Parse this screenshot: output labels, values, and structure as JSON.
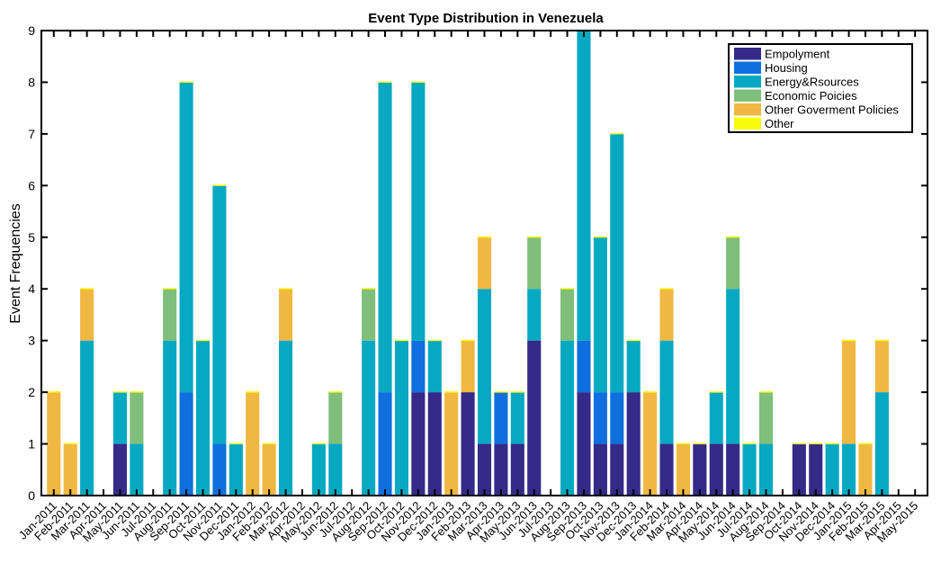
{
  "chart_data": {
    "type": "bar",
    "stacked": true,
    "title": "Event Type Distribution in Venezuela",
    "xlabel": "",
    "ylabel": "Event Frequencies",
    "ylim": [
      0,
      9
    ],
    "yticks": [
      0,
      1,
      2,
      3,
      4,
      5,
      6,
      7,
      8,
      9
    ],
    "grid": false,
    "legend_position": "top-right",
    "categories": [
      "Jan-2011",
      "Feb-2011",
      "Mar-2011",
      "Apr-2011",
      "May-2011",
      "Jun-2011",
      "Jul-2011",
      "Aug-2011",
      "Sep-2011",
      "Oct-2011",
      "Nov-2011",
      "Dec-2011",
      "Jan-2012",
      "Feb-2012",
      "Mar-2012",
      "Apr-2012",
      "May-2012",
      "Jun-2012",
      "Jul-2012",
      "Aug-2012",
      "Sep-2012",
      "Oct-2012",
      "Nov-2012",
      "Dec-2012",
      "Jan-2013",
      "Feb-2013",
      "Mar-2013",
      "Apr-2013",
      "May-2013",
      "Jun-2013",
      "Jul-2013",
      "Aug-2013",
      "Sep-2013",
      "Oct-2013",
      "Nov-2013",
      "Dec-2013",
      "Jan-2014",
      "Feb-2014",
      "Mar-2014",
      "Apr-2014",
      "May-2014",
      "Jun-2014",
      "Jul-2014",
      "Aug-2014",
      "Sep-2014",
      "Oct-2014",
      "Nov-2014",
      "Dec-2014",
      "Jan-2015",
      "Feb-2015",
      "Mar-2015",
      "Apr-2015",
      "May-2015"
    ],
    "xtick_labels": [
      "Jan-2011",
      "Feb-2011",
      "Mar-2011",
      "Apr-2011",
      "May-2011",
      "Jun-2011",
      "Jul-2011",
      "Aug-2011",
      "Sep-2011",
      "Oct-2011",
      "Nov-2011",
      "Dec-2011",
      "Jan-2012",
      "Feb-2012",
      "Mar-2012",
      "Apr-2012",
      "May-2012",
      "Jun-2012",
      "Jul-2012",
      "Aug-2012",
      "Sep-2012",
      "Oct-2012",
      "Nov-2012",
      "Dec-2012",
      "Jan-2013",
      "Feb-2013",
      "Mar-2013",
      "Apr-2013",
      "May-2013",
      "Jun-2013",
      "Jul-2013",
      "Aug-2013",
      "Sep-2013",
      "Oct-2013",
      "Nov-2013",
      "Dec-2013",
      "Jan-2014",
      "Feb-2014",
      "Mar-2014",
      "Apr-2014",
      "May-2014",
      "Jun-2014",
      "Jul-2014",
      "Aug-2014",
      "Sep-2014",
      "Oct-2014",
      "Nov-2014",
      "Dec-2014",
      "Jan-2015",
      "Feb-2015",
      "Mar-2015",
      "Apr-2015",
      "May-2015"
    ],
    "series": [
      {
        "name": "Empolyment",
        "color": "#352A87",
        "values": [
          0,
          0,
          0,
          0,
          1,
          0,
          0,
          0,
          0,
          0,
          0,
          0,
          0,
          0,
          0,
          0,
          0,
          0,
          0,
          0,
          0,
          0,
          2,
          2,
          0,
          2,
          1,
          1,
          1,
          3,
          0,
          0,
          2,
          1,
          1,
          2,
          0,
          1,
          0,
          1,
          1,
          1,
          0,
          0,
          0,
          1,
          1,
          0,
          0,
          0,
          0,
          0,
          0
        ]
      },
      {
        "name": "Housing",
        "color": "#0F6FDE",
        "values": [
          0,
          0,
          0,
          0,
          0,
          0,
          0,
          0,
          2,
          0,
          1,
          0,
          0,
          0,
          0,
          0,
          0,
          0,
          0,
          0,
          2,
          0,
          1,
          0,
          0,
          0,
          0,
          1,
          0,
          0,
          0,
          0,
          1,
          1,
          1,
          0,
          0,
          0,
          0,
          0,
          0,
          0,
          0,
          0,
          0,
          0,
          0,
          0,
          0,
          0,
          0,
          0,
          0
        ]
      },
      {
        "name": "Energy&Rsources",
        "color": "#07A9C2",
        "values": [
          0,
          0,
          3,
          0,
          1,
          1,
          0,
          3,
          6,
          3,
          5,
          1,
          0,
          0,
          3,
          0,
          1,
          1,
          0,
          3,
          6,
          3,
          5,
          1,
          0,
          0,
          3,
          0,
          1,
          1,
          0,
          3,
          6,
          3,
          5,
          1,
          0,
          2,
          0,
          0,
          1,
          3,
          1,
          1,
          0,
          0,
          0,
          1,
          1,
          0,
          2,
          0,
          0
        ]
      },
      {
        "name": "Economic Poicies",
        "color": "#7FBF7B",
        "values": [
          0,
          0,
          0,
          0,
          0,
          1,
          0,
          1,
          0,
          0,
          0,
          0,
          0,
          0,
          0,
          0,
          0,
          1,
          0,
          1,
          0,
          0,
          0,
          0,
          0,
          0,
          0,
          0,
          0,
          1,
          0,
          1,
          0,
          0,
          0,
          0,
          0,
          0,
          0,
          0,
          0,
          1,
          0,
          1,
          0,
          0,
          0,
          0,
          0,
          0,
          0,
          0,
          0
        ]
      },
      {
        "name": "Other Goverment Policies",
        "color": "#F0B842",
        "values": [
          2,
          1,
          1,
          0,
          0,
          0,
          0,
          0,
          0,
          0,
          0,
          0,
          2,
          1,
          1,
          0,
          0,
          0,
          0,
          0,
          0,
          0,
          0,
          0,
          2,
          1,
          1,
          0,
          0,
          0,
          0,
          0,
          0,
          0,
          0,
          0,
          2,
          1,
          1,
          0,
          0,
          0,
          0,
          0,
          0,
          0,
          0,
          0,
          2,
          1,
          1,
          0,
          0
        ]
      },
      {
        "name": "Other",
        "color": "#F9FB0E",
        "values": [
          0,
          0,
          0,
          0,
          0,
          0,
          0,
          0,
          0,
          0,
          0,
          0,
          0,
          0,
          0,
          0,
          0,
          0,
          0,
          0,
          0,
          0,
          0,
          0,
          0,
          0,
          0,
          0,
          0,
          0,
          0,
          0,
          0,
          0,
          0,
          0,
          0,
          0,
          0,
          0,
          0,
          0,
          0,
          0,
          0,
          0,
          0,
          0,
          0,
          0,
          0,
          0,
          0
        ]
      }
    ]
  }
}
